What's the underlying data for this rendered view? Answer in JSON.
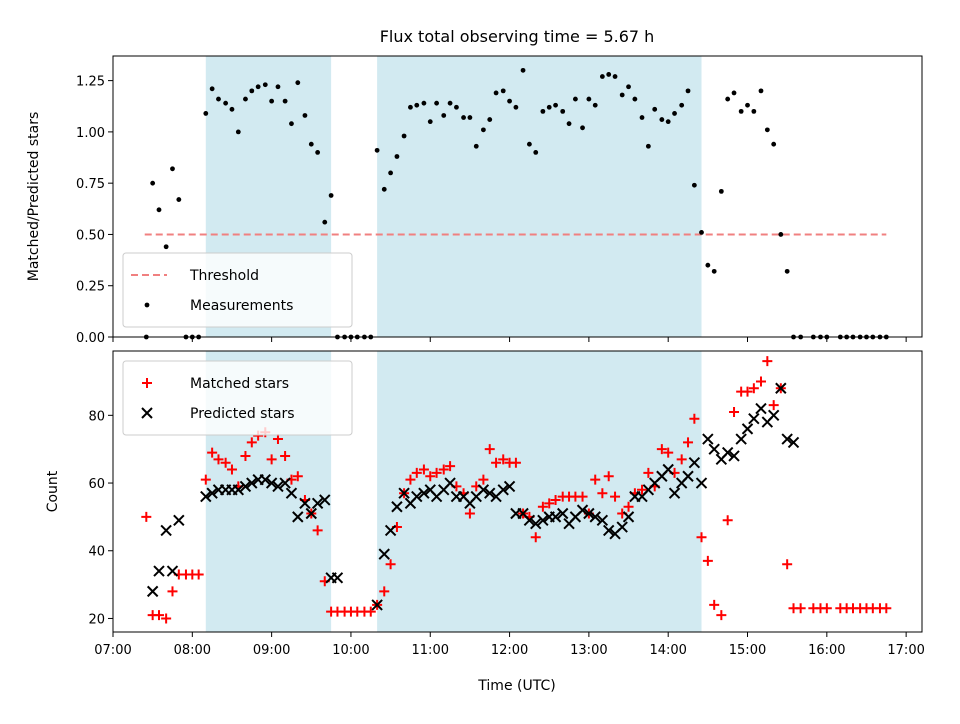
{
  "chart_data": {
    "title": "Flux total observing time = 5.67 h",
    "xlabel": "Time (UTC)",
    "x_unit": "hours UTC",
    "xlim": [
      7.0,
      17.2
    ],
    "x_ticks": [
      7,
      8,
      9,
      10,
      11,
      12,
      13,
      14,
      15,
      16,
      17
    ],
    "x_tick_labels": [
      "07:00",
      "08:00",
      "09:00",
      "10:00",
      "11:00",
      "12:00",
      "13:00",
      "14:00",
      "15:00",
      "16:00",
      "17:00"
    ],
    "shaded_intervals": [
      [
        8.17,
        9.75
      ],
      [
        10.33,
        14.42
      ]
    ],
    "shade_color": "#add8e6",
    "panels": [
      {
        "type": "scatter",
        "ylabel": "Matched/Predicted stars",
        "ylim": [
          0,
          1.37
        ],
        "y_ticks": [
          0,
          0.25,
          0.5,
          0.75,
          1.0,
          1.25
        ],
        "y_tick_labels": [
          "0.00",
          "0.25",
          "0.50",
          "0.75",
          "1.00",
          "1.25"
        ],
        "legend_position": "lower-left",
        "threshold": {
          "name": "Threshold",
          "value": 0.5,
          "x_range": [
            7.4,
            16.75
          ],
          "color": "#f08080",
          "style": "dashed"
        },
        "series": [
          {
            "name": "Measurements",
            "marker": "dot",
            "color": "#000000",
            "x": [
              7.42,
              7.5,
              7.58,
              7.67,
              7.75,
              7.83,
              7.92,
              8.0,
              8.08,
              8.17,
              8.25,
              8.33,
              8.42,
              8.5,
              8.58,
              8.67,
              8.75,
              8.83,
              8.92,
              9.0,
              9.08,
              9.17,
              9.25,
              9.33,
              9.42,
              9.5,
              9.58,
              9.67,
              9.75,
              9.83,
              9.92,
              10.0,
              10.08,
              10.17,
              10.25,
              10.33,
              10.42,
              10.5,
              10.58,
              10.67,
              10.75,
              10.83,
              10.92,
              11.0,
              11.08,
              11.17,
              11.25,
              11.33,
              11.42,
              11.5,
              11.58,
              11.67,
              11.75,
              11.83,
              11.92,
              12.0,
              12.08,
              12.17,
              12.25,
              12.33,
              12.42,
              12.5,
              12.58,
              12.67,
              12.75,
              12.83,
              12.92,
              13.0,
              13.08,
              13.17,
              13.25,
              13.33,
              13.42,
              13.5,
              13.58,
              13.67,
              13.75,
              13.83,
              13.92,
              14.0,
              14.08,
              14.17,
              14.25,
              14.33,
              14.42,
              14.5,
              14.58,
              14.67,
              14.75,
              14.83,
              14.92,
              15.0,
              15.08,
              15.17,
              15.25,
              15.33,
              15.42,
              15.5,
              15.58,
              15.67,
              15.83,
              15.92,
              16.0,
              16.17,
              16.25,
              16.33,
              16.42,
              16.5,
              16.58,
              16.67,
              16.75
            ],
            "y": [
              0.0,
              0.75,
              0.62,
              0.44,
              0.82,
              0.67,
              0.0,
              0.0,
              0.0,
              1.09,
              1.21,
              1.16,
              1.14,
              1.11,
              1.0,
              1.16,
              1.2,
              1.22,
              1.23,
              1.15,
              1.22,
              1.15,
              1.04,
              1.24,
              1.08,
              0.94,
              0.9,
              0.56,
              0.69,
              0.0,
              0.0,
              0.0,
              0.0,
              0.0,
              0.0,
              0.91,
              0.72,
              0.8,
              0.88,
              0.98,
              1.12,
              1.13,
              1.14,
              1.05,
              1.14,
              1.08,
              1.14,
              1.12,
              1.07,
              1.07,
              0.93,
              1.01,
              1.06,
              1.19,
              1.2,
              1.15,
              1.12,
              1.3,
              0.94,
              0.9,
              1.1,
              1.12,
              1.13,
              1.1,
              1.04,
              1.16,
              1.02,
              1.16,
              1.13,
              1.27,
              1.28,
              1.27,
              1.18,
              1.22,
              1.16,
              1.07,
              0.93,
              1.11,
              1.06,
              1.05,
              1.09,
              1.13,
              1.2,
              0.74,
              0.51,
              0.35,
              0.32,
              0.71,
              1.16,
              1.19,
              1.1,
              1.13,
              1.1,
              1.2,
              1.01,
              0.94,
              0.5,
              0.32,
              0.0,
              0.0,
              0.0,
              0.0,
              0.0,
              0.0,
              0.0,
              0.0,
              0.0,
              0.0,
              0.0,
              0.0,
              0.0
            ]
          }
        ]
      },
      {
        "type": "scatter",
        "ylabel": "Count",
        "ylim": [
          16,
          99
        ],
        "y_ticks": [
          20,
          40,
          60,
          80
        ],
        "y_tick_labels": [
          "20",
          "40",
          "60",
          "80"
        ],
        "legend_position": "top-left",
        "series": [
          {
            "name": "Matched stars",
            "marker": "plus",
            "color": "#ff0000",
            "x": [
              7.42,
              7.5,
              7.58,
              7.67,
              7.75,
              7.83,
              7.92,
              8.0,
              8.08,
              8.17,
              8.25,
              8.33,
              8.42,
              8.5,
              8.58,
              8.67,
              8.75,
              8.83,
              8.92,
              9.0,
              9.08,
              9.17,
              9.25,
              9.33,
              9.42,
              9.5,
              9.58,
              9.67,
              9.75,
              9.83,
              9.92,
              10.0,
              10.08,
              10.17,
              10.25,
              10.33,
              10.42,
              10.5,
              10.58,
              10.67,
              10.75,
              10.83,
              10.92,
              11.0,
              11.08,
              11.17,
              11.25,
              11.33,
              11.42,
              11.5,
              11.58,
              11.67,
              11.75,
              11.83,
              11.92,
              12.0,
              12.08,
              12.17,
              12.25,
              12.33,
              12.42,
              12.5,
              12.58,
              12.67,
              12.75,
              12.83,
              12.92,
              13.0,
              13.08,
              13.17,
              13.25,
              13.33,
              13.42,
              13.5,
              13.58,
              13.67,
              13.75,
              13.83,
              13.92,
              14.0,
              14.08,
              14.17,
              14.25,
              14.33,
              14.42,
              14.5,
              14.58,
              14.67,
              14.75,
              14.83,
              14.92,
              15.0,
              15.08,
              15.17,
              15.25,
              15.33,
              15.42,
              15.5,
              15.58,
              15.67,
              15.83,
              15.92,
              16.0,
              16.17,
              16.25,
              16.33,
              16.42,
              16.5,
              16.58,
              16.67,
              16.75
            ],
            "y": [
              50,
              21,
              21,
              20,
              28,
              33,
              33,
              33,
              33,
              61,
              69,
              67,
              66,
              64,
              59,
              68,
              72,
              74,
              75,
              67,
              73,
              68,
              61,
              62,
              55,
              51,
              46,
              31,
              22,
              22,
              22,
              22,
              22,
              22,
              22,
              24,
              28,
              36,
              47,
              57,
              61,
              63,
              64,
              62,
              63,
              64,
              65,
              59,
              57,
              51,
              59,
              61,
              70,
              66,
              67,
              66,
              66,
              51,
              50,
              44,
              53,
              54,
              55,
              56,
              56,
              56,
              56,
              51,
              61,
              57,
              62,
              56,
              51,
              53,
              57,
              58,
              63,
              59,
              70,
              69,
              63,
              67,
              72,
              79,
              44,
              37,
              24,
              21,
              49,
              81,
              87,
              87,
              88,
              90,
              96,
              83,
              88,
              36,
              23,
              23,
              23,
              23,
              23,
              23,
              23,
              23,
              23,
              23,
              23,
              23,
              23
            ]
          },
          {
            "name": "Predicted stars",
            "marker": "x",
            "color": "#000000",
            "x": [
              7.5,
              7.58,
              7.67,
              7.75,
              7.83,
              8.17,
              8.25,
              8.33,
              8.42,
              8.5,
              8.58,
              8.67,
              8.75,
              8.83,
              8.92,
              9.0,
              9.08,
              9.17,
              9.25,
              9.33,
              9.42,
              9.5,
              9.58,
              9.67,
              9.75,
              9.83,
              10.33,
              10.42,
              10.5,
              10.58,
              10.67,
              10.75,
              10.83,
              10.92,
              11.0,
              11.08,
              11.17,
              11.25,
              11.33,
              11.42,
              11.5,
              11.58,
              11.67,
              11.75,
              11.83,
              11.92,
              12.0,
              12.08,
              12.17,
              12.25,
              12.33,
              12.42,
              12.5,
              12.58,
              12.67,
              12.75,
              12.83,
              12.92,
              13.0,
              13.08,
              13.17,
              13.25,
              13.33,
              13.42,
              13.5,
              13.58,
              13.67,
              13.75,
              13.83,
              13.92,
              14.0,
              14.08,
              14.17,
              14.25,
              14.33,
              14.42,
              14.5,
              14.58,
              14.67,
              14.75,
              14.83,
              14.92,
              15.0,
              15.08,
              15.17,
              15.25,
              15.33,
              15.42,
              15.5,
              15.58
            ],
            "y": [
              28,
              34,
              46,
              34,
              49,
              56,
              57,
              58,
              58,
              58,
              58,
              59,
              60,
              61,
              61,
              60,
              59,
              60,
              57,
              50,
              54,
              51,
              54,
              55,
              32,
              32,
              24,
              39,
              46,
              53,
              57,
              54,
              56,
              57,
              58,
              56,
              58,
              60,
              56,
              56,
              54,
              56,
              58,
              57,
              56,
              58,
              59,
              51,
              51,
              49,
              48,
              49,
              50,
              50,
              51,
              48,
              50,
              52,
              51,
              50,
              49,
              46,
              45,
              47,
              50,
              56,
              56,
              58,
              60,
              62,
              64,
              57,
              60,
              62,
              66,
              60,
              73,
              70,
              67,
              69,
              68,
              73,
              76,
              79,
              82,
              78,
              80,
              88,
              73,
              72
            ]
          }
        ]
      }
    ]
  }
}
